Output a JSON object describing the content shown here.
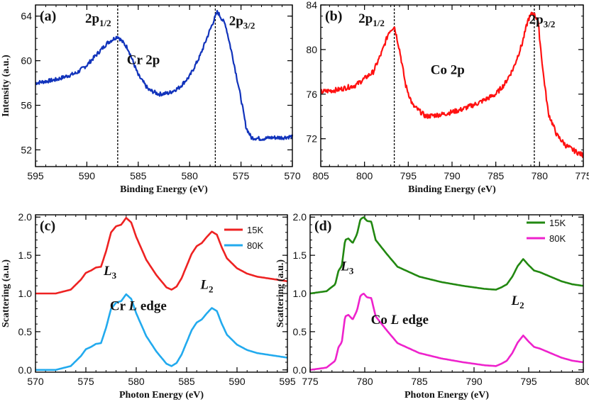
{
  "chart_data": [
    {
      "id": "a",
      "type": "line",
      "panel_label": "(a)",
      "xlabel": "Binding Energy (eV)",
      "ylabel": "Intensity (a.u.)",
      "xlim": [
        595,
        570
      ],
      "ylim": [
        50.5,
        65
      ],
      "xticks": [
        595,
        590,
        585,
        580,
        575,
        570
      ],
      "yticks": [
        52,
        56,
        60,
        64
      ],
      "x_minor_step": 1,
      "y_minor_step": 1,
      "annotations": [
        {
          "text": "Cr 2p",
          "x": 584.5,
          "y": 59.7
        },
        {
          "text": "2p1/2",
          "main": "2p",
          "sub": "1/2",
          "x": 588.9,
          "y": 63.4
        },
        {
          "text": "2p3/2",
          "main": "2p",
          "sub": "3/2",
          "x": 574.9,
          "y": 63.2
        }
      ],
      "vlines": [
        587.0,
        577.5
      ],
      "series": [
        {
          "name": "Cr 2p XPS",
          "color": "#1133bb",
          "noise": 0.18,
          "x": [
            595,
            593,
            591,
            590,
            589,
            588,
            587,
            586,
            585,
            584,
            583,
            582,
            581,
            580,
            579,
            578,
            577.3,
            576.5,
            575.8,
            575,
            574.5,
            574,
            573,
            572,
            571,
            570
          ],
          "y": [
            58.0,
            58.3,
            58.9,
            59.6,
            60.6,
            61.6,
            62.2,
            61.1,
            58.7,
            57.4,
            57.0,
            57.1,
            57.6,
            58.6,
            60.4,
            62.8,
            64.4,
            63.2,
            60.3,
            56.6,
            54.0,
            53.1,
            53.0,
            53.1,
            53.1,
            53.2
          ]
        }
      ]
    },
    {
      "id": "b",
      "type": "line",
      "panel_label": "(b)",
      "xlabel": "Binding Energy (eV)",
      "ylabel": "",
      "xlim": [
        805,
        775
      ],
      "ylim": [
        69.5,
        84
      ],
      "xticks": [
        805,
        800,
        795,
        790,
        785,
        780,
        775
      ],
      "yticks": [
        72,
        76,
        80,
        84
      ],
      "x_minor_step": 1,
      "y_minor_step": 1,
      "annotations": [
        {
          "text": "Co 2p",
          "x": 790.5,
          "y": 77.8
        },
        {
          "text": "2p1/2",
          "main": "2p",
          "sub": "1/2",
          "x": 799.2,
          "y": 82.4
        },
        {
          "text": "2p3/2",
          "main": "2p",
          "sub": "3/2",
          "x": 779.7,
          "y": 82.3
        }
      ],
      "vlines": [
        796.6,
        780.6
      ],
      "series": [
        {
          "name": "Co 2p XPS",
          "color": "#ff1111",
          "noise": 0.22,
          "x": [
            805,
            803,
            801,
            799,
            798,
            797.2,
            796.6,
            796,
            795.3,
            794.5,
            793,
            791,
            789,
            787,
            785,
            784,
            783,
            782,
            781.3,
            780.8,
            780.2,
            779.6,
            779,
            778,
            777,
            776,
            775
          ],
          "y": [
            76.2,
            76.4,
            76.8,
            78.0,
            79.8,
            81.6,
            82.1,
            80.0,
            76.8,
            75.0,
            74.0,
            74.2,
            74.6,
            75.2,
            76.0,
            76.9,
            78.3,
            80.5,
            82.7,
            83.3,
            82.7,
            78.0,
            74.3,
            72.3,
            71.4,
            70.9,
            70.5
          ]
        }
      ]
    },
    {
      "id": "c",
      "type": "line",
      "panel_label": "(c)",
      "xlabel": "Photon Energy (eV)",
      "ylabel": "Scattering (a.u.)",
      "xlim": [
        570,
        595
      ],
      "ylim": [
        -0.03,
        2.03
      ],
      "xticks": [
        570,
        575,
        580,
        585,
        590,
        595
      ],
      "yticks": [
        0.0,
        0.5,
        1.0,
        1.5,
        2.0
      ],
      "ytick_labels": [
        "0.0",
        "0.5",
        "1.0",
        "1.5",
        "2.0"
      ],
      "x_minor_step": 1,
      "y_minor_step": 0.1,
      "legend": {
        "position": "top-right",
        "entries": [
          "15K",
          "80K"
        ]
      },
      "annotations": [
        {
          "text": "L3",
          "main": "L",
          "sub": "3",
          "x": 577.4,
          "y": 1.24
        },
        {
          "text": "L2",
          "main": "L",
          "sub": "2",
          "x": 587.0,
          "y": 1.06
        },
        {
          "text": "Cr L edge",
          "parts": [
            "Cr ",
            "L",
            " edge"
          ],
          "x": 580.2,
          "y": 0.78
        }
      ],
      "series": [
        {
          "name": "15K",
          "color": "#ee2222",
          "noise": 0,
          "x": [
            570,
            572,
            573.5,
            574.5,
            575,
            575.5,
            576,
            576.5,
            577,
            577.5,
            578,
            578.5,
            579,
            579.5,
            580,
            581,
            582,
            583,
            583.5,
            584,
            584.5,
            585,
            585.5,
            586,
            586.5,
            587,
            587.5,
            588,
            588.5,
            589,
            590,
            591,
            592,
            593,
            594,
            595
          ],
          "y": [
            1.0,
            1.0,
            1.05,
            1.18,
            1.27,
            1.3,
            1.34,
            1.35,
            1.55,
            1.8,
            1.88,
            1.9,
            1.99,
            1.93,
            1.74,
            1.44,
            1.24,
            1.08,
            1.05,
            1.09,
            1.2,
            1.36,
            1.52,
            1.62,
            1.66,
            1.74,
            1.81,
            1.77,
            1.6,
            1.46,
            1.33,
            1.26,
            1.22,
            1.2,
            1.18,
            1.16
          ]
        },
        {
          "name": "80K",
          "color": "#22aaee",
          "noise": 0,
          "x": [
            570,
            572,
            573.5,
            574.5,
            575,
            575.5,
            576,
            576.5,
            577,
            577.5,
            578,
            578.5,
            579,
            579.5,
            580,
            581,
            582,
            583,
            583.5,
            584,
            584.5,
            585,
            585.5,
            586,
            586.5,
            587,
            587.5,
            588,
            588.5,
            589,
            590,
            591,
            592,
            593,
            594,
            595
          ],
          "y": [
            0.0,
            0.0,
            0.05,
            0.18,
            0.27,
            0.3,
            0.34,
            0.35,
            0.55,
            0.8,
            0.88,
            0.9,
            0.99,
            0.93,
            0.74,
            0.44,
            0.24,
            0.08,
            0.05,
            0.09,
            0.2,
            0.36,
            0.52,
            0.62,
            0.66,
            0.74,
            0.81,
            0.77,
            0.6,
            0.46,
            0.33,
            0.26,
            0.22,
            0.2,
            0.18,
            0.16
          ]
        }
      ]
    },
    {
      "id": "d",
      "type": "line",
      "panel_label": "(d)",
      "xlabel": "Photon Energy (eV)",
      "ylabel": "Scattering (a.u.)",
      "xlim": [
        775,
        800
      ],
      "ylim": [
        -0.03,
        2.03
      ],
      "xticks": [
        775,
        780,
        785,
        790,
        795,
        800
      ],
      "yticks": [
        0.0,
        0.5,
        1.0,
        1.5,
        2.0
      ],
      "ytick_labels": [
        "0.0",
        "0.5",
        "1.0",
        "1.5",
        "2.0"
      ],
      "x_minor_step": 1,
      "y_minor_step": 0.1,
      "legend": {
        "position": "top-right",
        "entries": [
          "15K",
          "80K"
        ]
      },
      "annotations": [
        {
          "text": "L3",
          "main": "L",
          "sub": "3",
          "x": 778.4,
          "y": 1.3
        },
        {
          "text": "L2",
          "main": "L",
          "sub": "2",
          "x": 794.0,
          "y": 0.85
        },
        {
          "text": "Co L edge",
          "parts": [
            "Co ",
            "L",
            " edge"
          ],
          "x": 783.2,
          "y": 0.6
        }
      ],
      "series": [
        {
          "name": "15K",
          "color": "#228811",
          "noise": 0,
          "x": [
            775,
            776.5,
            777.3,
            777.6,
            777.9,
            778.2,
            778.5,
            778.9,
            779.3,
            779.6,
            779.9,
            780.2,
            780.6,
            781,
            782,
            783,
            785,
            787,
            789,
            791,
            792,
            792.5,
            793,
            793.5,
            794,
            794.5,
            795,
            795.5,
            796,
            797,
            798,
            799,
            800
          ],
          "y": [
            1.0,
            1.03,
            1.12,
            1.3,
            1.36,
            1.7,
            1.72,
            1.66,
            1.78,
            1.97,
            2.0,
            1.95,
            1.94,
            1.7,
            1.52,
            1.35,
            1.22,
            1.15,
            1.1,
            1.06,
            1.05,
            1.08,
            1.12,
            1.22,
            1.36,
            1.45,
            1.37,
            1.3,
            1.28,
            1.22,
            1.16,
            1.12,
            1.1
          ]
        },
        {
          "name": "80K",
          "color": "#ee22cc",
          "noise": 0,
          "x": [
            775,
            776.5,
            777.3,
            777.6,
            777.9,
            778.2,
            778.5,
            778.9,
            779.3,
            779.6,
            779.9,
            780.2,
            780.6,
            781,
            782,
            783,
            785,
            787,
            789,
            791,
            792,
            792.5,
            793,
            793.5,
            794,
            794.5,
            795,
            795.5,
            796,
            797,
            798,
            799,
            800
          ],
          "y": [
            0.0,
            0.03,
            0.12,
            0.3,
            0.36,
            0.7,
            0.72,
            0.66,
            0.78,
            0.97,
            1.0,
            0.95,
            0.94,
            0.7,
            0.52,
            0.35,
            0.22,
            0.15,
            0.1,
            0.06,
            0.05,
            0.08,
            0.12,
            0.22,
            0.36,
            0.45,
            0.37,
            0.3,
            0.28,
            0.22,
            0.16,
            0.12,
            0.1
          ]
        }
      ]
    }
  ]
}
